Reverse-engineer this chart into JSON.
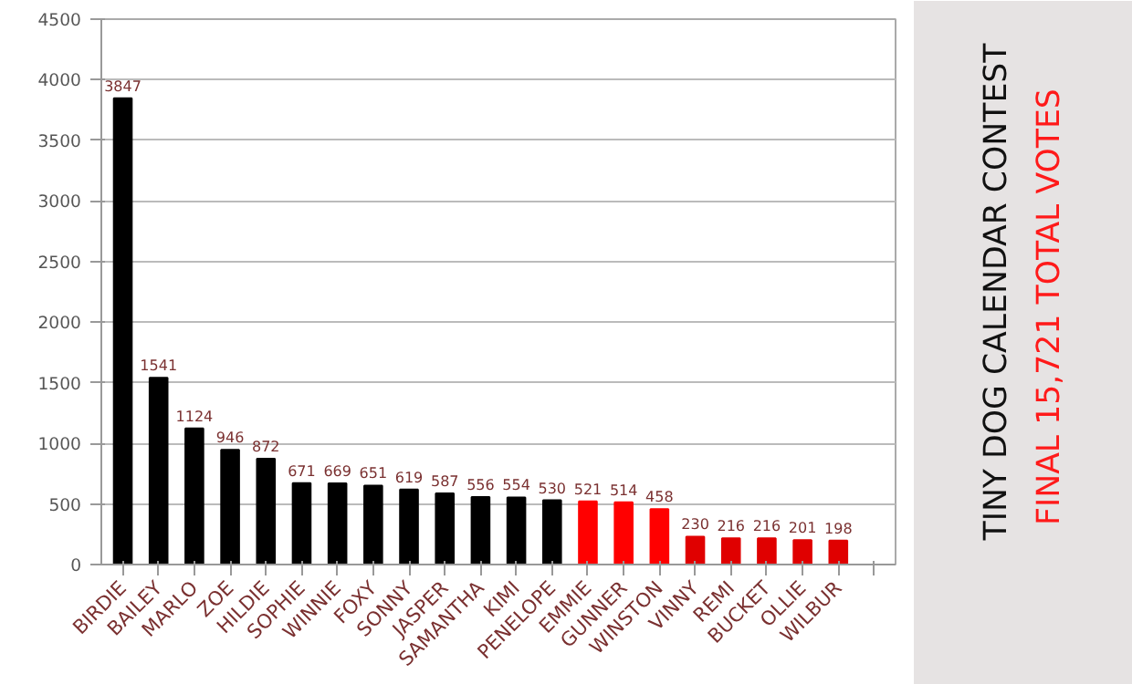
{
  "chart_data": {
    "type": "bar",
    "title": "TINY DOG CALENDAR CONTEST",
    "subtitle": "FINAL  15,721   TOTAL VOTES",
    "categories": [
      "BIRDIE",
      "BAILEY",
      "MARLO",
      "ZOE",
      "HILDIE",
      "SOPHIE",
      "WINNIE",
      "FOXY",
      "SONNY",
      "JASPER",
      "SAMANTHA",
      "KIMI",
      "PENELOPE",
      "EMMIE",
      "GUNNER",
      "WINSTON",
      "VINNY",
      "REMI",
      "BUCKET",
      "OLLIE",
      "WILBUR",
      null
    ],
    "values": [
      3847,
      1541,
      1124,
      946,
      872,
      671,
      669,
      651,
      619,
      587,
      556,
      554,
      530,
      521,
      514,
      458,
      230,
      216,
      216,
      201,
      198,
      null
    ],
    "colors": [
      "#000000",
      "#000000",
      "#000000",
      "#000000",
      "#000000",
      "#000000",
      "#000000",
      "#000000",
      "#000000",
      "#000000",
      "#000000",
      "#000000",
      "#000000",
      "#ff0000",
      "#ff0000",
      "#ff0000",
      "#e00000",
      "#e00000",
      "#e00000",
      "#e00000",
      "#e00000",
      "#000000"
    ],
    "ylim": [
      0,
      4500
    ],
    "yticks": [
      0,
      500,
      1000,
      1500,
      2000,
      2500,
      3000,
      3500,
      4000,
      4500
    ],
    "grid": "y",
    "data_labels": true
  }
}
